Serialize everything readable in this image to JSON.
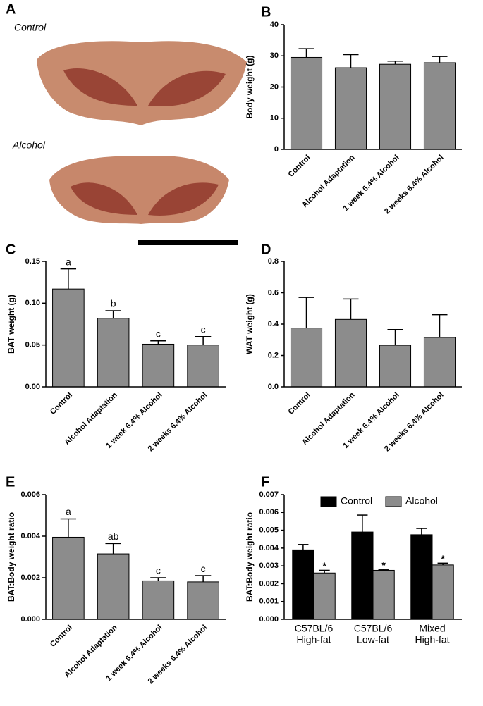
{
  "photo": {
    "label": "A",
    "captions": [
      "Control",
      "Alcohol"
    ]
  },
  "chart_data": [
    {
      "type": "bar",
      "label": "B",
      "ylabel": "Body weight (g)",
      "categories": [
        "Control",
        "Alcohol Adaptation",
        "1 week 6.4% Alcohol",
        "2 weeks 6.4% Alcohol"
      ],
      "values": [
        29.5,
        26.2,
        27.3,
        27.8
      ],
      "errors": [
        2.8,
        4.2,
        1.0,
        2.0
      ],
      "color": "#8c8c8c",
      "ylim": [
        0,
        40
      ],
      "yticks": [
        0,
        10,
        20,
        30,
        40
      ]
    },
    {
      "type": "bar",
      "label": "C",
      "ylabel": "BAT weight (g)",
      "categories": [
        "Control",
        "Alcohol Adaptation",
        "1 week 6.4% Alcohol",
        "2 weeks 6.4% Alcohol"
      ],
      "values": [
        0.117,
        0.082,
        0.051,
        0.05
      ],
      "errors": [
        0.024,
        0.009,
        0.004,
        0.01
      ],
      "color": "#8c8c8c",
      "letters": [
        "a",
        "b",
        "c",
        "c"
      ],
      "ylim": [
        0,
        0.15
      ],
      "yticks": [
        {
          "value": 0,
          "label": "0.00"
        },
        0.05,
        {
          "value": 0.1,
          "label": "0.10"
        },
        0.15
      ]
    },
    {
      "type": "bar",
      "label": "D",
      "ylabel": "WAT weight (g)",
      "categories": [
        "Control",
        "Alcohol Adaptation",
        "1 week 6.4% Alcohol",
        "2 weeks 6.4% Alcohol"
      ],
      "values": [
        0.375,
        0.43,
        0.265,
        0.315
      ],
      "errors": [
        0.195,
        0.13,
        0.1,
        0.145
      ],
      "color": "#8c8c8c",
      "ylim": [
        0,
        0.8
      ],
      "yticks": [
        {
          "value": 0,
          "label": "0.0"
        },
        0.2,
        0.4,
        0.6,
        0.8
      ]
    },
    {
      "type": "bar",
      "label": "E",
      "ylabel": "BAT:Body weight ratio",
      "categories": [
        "Control",
        "Alcohol Adaptation",
        "1 week 6.4% Alcohol",
        "2 weeks 6.4% Alcohol"
      ],
      "values": [
        0.00395,
        0.00315,
        0.00185,
        0.0018
      ],
      "errors": [
        0.00088,
        0.0005,
        0.00015,
        0.0003
      ],
      "color": "#8c8c8c",
      "letters": [
        "a",
        "ab",
        "c",
        "c"
      ],
      "ylim": [
        0,
        0.006
      ],
      "yticks": [
        {
          "value": 0,
          "label": "0.000"
        },
        0.002,
        0.004,
        0.006
      ]
    },
    {
      "type": "grouped_bar",
      "label": "F",
      "ylabel": "BAT:Body weight ratio",
      "categories": [
        [
          "C57BL/6",
          "High-fat"
        ],
        [
          "C57BL/6",
          "Low-fat"
        ],
        [
          "Mixed",
          "High-fat"
        ]
      ],
      "series": [
        {
          "name": "Control",
          "color": "#000000",
          "values": [
            0.0039,
            0.0049,
            0.00475
          ],
          "errors": [
            0.0003,
            0.00095,
            0.00035
          ]
        },
        {
          "name": "Alcohol",
          "color": "#8c8c8c",
          "values": [
            0.0026,
            0.00275,
            0.00305
          ],
          "errors": [
            0.00015,
            5e-05,
            0.0001
          ],
          "marks": [
            "*",
            "*",
            "*"
          ]
        }
      ],
      "legend": "top",
      "ylim": [
        0,
        0.007
      ],
      "yticks": [
        {
          "value": 0,
          "label": "0.000"
        },
        0.001,
        0.002,
        0.003,
        0.004,
        0.005,
        0.006,
        0.007
      ]
    }
  ]
}
